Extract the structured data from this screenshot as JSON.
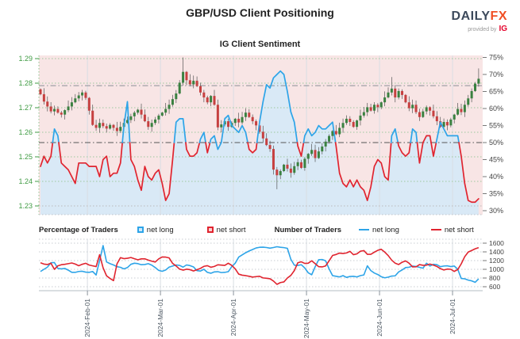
{
  "header": {
    "title": "GBP/USD Client Positioning",
    "subtitle": "IG Client Sentiment"
  },
  "logo": {
    "daily": "DAILY",
    "fx": "FX",
    "provided": "provided by",
    "ig": "IG"
  },
  "legend": {
    "pct_header": "Percentage of Traders",
    "pct_long": "net long",
    "pct_short": "net short",
    "num_header": "Number of Traders",
    "num_long": "net long",
    "num_short": "net short"
  },
  "colors": {
    "bg_pink": "#f8e5e5",
    "bg_blue": "#d9e9f6",
    "line_blue": "#2da4e8",
    "line_red": "#e0242f",
    "candle_green": "#3a8140",
    "candle_red": "#c64040",
    "wick": "#555555",
    "grid_green": "#9dc89d",
    "grid_gray": "#c8cdd2",
    "axis_green": "#3f9b43",
    "axis_gray": "#444444",
    "date_label": "#4a5560",
    "fifty_line": "#555555"
  },
  "chart_data": {
    "type": "candlestick+line",
    "title": "GBP/USD Client Positioning",
    "subtitle": "IG Client Sentiment",
    "grid": true,
    "price_axis": {
      "side": "left",
      "ticks": [
        1.29,
        1.28,
        1.27,
        1.26,
        1.25,
        1.24,
        1.23
      ]
    },
    "pct_axis": {
      "side": "right",
      "ticks": [
        75,
        70,
        65,
        60,
        55,
        50,
        45,
        40,
        35,
        30
      ],
      "suffix": "%"
    },
    "count_axis": {
      "side": "right",
      "ticks": [
        1600,
        1400,
        1200,
        1000,
        800,
        600
      ]
    },
    "x_months": {
      "labels": [
        "2024-Feb-01",
        "2024-Mar-01",
        "2024-Apr-01",
        "2024-May-01",
        "2024-Jun-01",
        "2024-Jul-01"
      ],
      "indices": [
        13.5,
        34.5,
        55.5,
        76.5,
        97.5,
        118.5
      ]
    },
    "marker_price": 1.279,
    "first_open": 1.2775,
    "high_override": {
      "41": 1.2905,
      "101": 1.2825,
      "126": 1.286
    },
    "low_override": {
      "68": 1.2368
    },
    "candles_close": [
      1.2755,
      1.2725,
      1.2705,
      1.2685,
      1.2695,
      1.268,
      1.2672,
      1.269,
      1.2705,
      1.2722,
      1.2738,
      1.275,
      1.2762,
      1.274,
      1.2688,
      1.263,
      1.2618,
      1.2638,
      1.2625,
      1.2615,
      1.263,
      1.2618,
      1.2605,
      1.2622,
      1.2638,
      1.265,
      1.2665,
      1.268,
      1.2692,
      1.2672,
      1.2645,
      1.2622,
      1.2638,
      1.2652,
      1.2668,
      1.268,
      1.2695,
      1.2712,
      1.2735,
      1.2758,
      1.2802,
      1.2846,
      1.2812,
      1.2795,
      1.281,
      1.2788,
      1.2762,
      1.2742,
      1.2722,
      1.2748,
      1.2712,
      1.262,
      1.2632,
      1.2645,
      1.2622,
      1.2638,
      1.2655,
      1.264,
      1.2662,
      1.268,
      1.2662,
      1.2645,
      1.2628,
      1.2602,
      1.2575,
      1.2548,
      1.2532,
      1.2448,
      1.2425,
      1.2442,
      1.2468,
      1.2452,
      1.2435,
      1.2462,
      1.2478,
      1.2455,
      1.2492,
      1.2512,
      1.2528,
      1.2495,
      1.2522,
      1.2542,
      1.2562,
      1.2585,
      1.2605,
      1.2592,
      1.2618,
      1.2638,
      1.2655,
      1.2642,
      1.2622,
      1.2648,
      1.2668,
      1.2682,
      1.2702,
      1.2688,
      1.2712,
      1.2702,
      1.2722,
      1.2742,
      1.2762,
      1.2778,
      1.2742,
      1.2768,
      1.2752,
      1.2722,
      1.2698,
      1.2712,
      1.2682,
      1.2662,
      1.2685,
      1.2702,
      1.2688,
      1.2665,
      1.2645,
      1.2622,
      1.2642,
      1.2628,
      1.2652,
      1.2672,
      1.2695,
      1.2682,
      1.2712,
      1.2738,
      1.2768,
      1.2798,
      1.2818
    ],
    "sentiment_pct": [
      43,
      46,
      44,
      46,
      54,
      52,
      44,
      43,
      42,
      40,
      38,
      44,
      44,
      44,
      43,
      43,
      43,
      40,
      45,
      46,
      40,
      41,
      41,
      44,
      55,
      62,
      45,
      43,
      39,
      36,
      43,
      40,
      39,
      41,
      42,
      38,
      33,
      35,
      45,
      56,
      57,
      57,
      48,
      46,
      46,
      47,
      51,
      53,
      47,
      51,
      52,
      48,
      50,
      57,
      58,
      55,
      54,
      53,
      55,
      53,
      48,
      47,
      48,
      56,
      62,
      67,
      66,
      69,
      70,
      71,
      70,
      65,
      59,
      56,
      49,
      46,
      52,
      54,
      52,
      53,
      55,
      54,
      54,
      55,
      56,
      49,
      41,
      38,
      37,
      39,
      37,
      39,
      37,
      36,
      33,
      37,
      43,
      45,
      44,
      40,
      39,
      52,
      54,
      49,
      47,
      46,
      47,
      54,
      53,
      44,
      50,
      52,
      52,
      46,
      51,
      56,
      54,
      52,
      52,
      52,
      52,
      46,
      38,
      33,
      32.5,
      32.5,
      33.5
    ],
    "traders_long": [
      950,
      1000,
      1050,
      1150,
      1155,
      1020,
      1010,
      1020,
      980,
      930,
      930,
      950,
      955,
      935,
      930,
      950,
      870,
      1200,
      1545,
      1170,
      1130,
      1100,
      1060,
      1045,
      1010,
      1040,
      1115,
      1140,
      1130,
      1105,
      1110,
      1130,
      1095,
      1040,
      975,
      955,
      985,
      1050,
      1075,
      1100,
      1090,
      1050,
      1100,
      1085,
      1055,
      970,
      960,
      1000,
      930,
      910,
      940,
      945,
      925,
      930,
      945,
      1060,
      1140,
      1280,
      1330,
      1380,
      1420,
      1455,
      1490,
      1505,
      1508,
      1500,
      1485,
      1500,
      1518,
      1505,
      1498,
      1482,
      1230,
      1095,
      1090,
      1105,
      1030,
      920,
      875,
      1060,
      1220,
      1225,
      1195,
      1010,
      855,
      840,
      825,
      855,
      815,
      835,
      840,
      825,
      855,
      870,
      1080,
      970,
      915,
      880,
      830,
      805,
      820,
      845,
      850,
      940,
      985,
      1040,
      1048,
      1075,
      1065,
      1045,
      1025,
      1140,
      1075,
      1115,
      1105,
      1060,
      1075,
      1080,
      1062,
      1075,
      1000,
      790,
      782,
      752,
      735,
      702,
      780
    ],
    "traders_short": [
      1150,
      1120,
      1110,
      1140,
      1000,
      1080,
      1105,
      1115,
      1130,
      1145,
      1120,
      1082,
      1115,
      1138,
      1098,
      1080,
      1062,
      1335,
      1035,
      850,
      790,
      740,
      1125,
      1267,
      1245,
      1253,
      1270,
      1243,
      1218,
      1240,
      1241,
      1212,
      1187,
      1167,
      1240,
      1283,
      1280,
      1261,
      1136,
      1076,
      1005,
      981,
      1003,
      992,
      962,
      990,
      1021,
      1068,
      1083,
      1047,
      1066,
      1103,
      1096,
      1090,
      1140,
      1090,
      1010,
      890,
      865,
      855,
      840,
      822,
      832,
      840,
      802,
      795,
      783,
      730,
      655,
      695,
      710,
      800,
      860,
      970,
      1150,
      1172,
      1135,
      1140,
      1195,
      1130,
      1060,
      1055,
      1078,
      1195,
      1318,
      1340,
      1372,
      1362,
      1375,
      1412,
      1335,
      1355,
      1415,
      1430,
      1345,
      1345,
      1393,
      1436,
      1460,
      1395,
      1315,
      1210,
      1140,
      1110,
      1162,
      1193,
      1140,
      1055,
      1057,
      1108,
      1092,
      1095,
      1120,
      1095,
      1065,
      1015,
      985,
      1005,
      1000,
      952,
      995,
      1125,
      1290,
      1395,
      1432,
      1470,
      1498
    ]
  }
}
